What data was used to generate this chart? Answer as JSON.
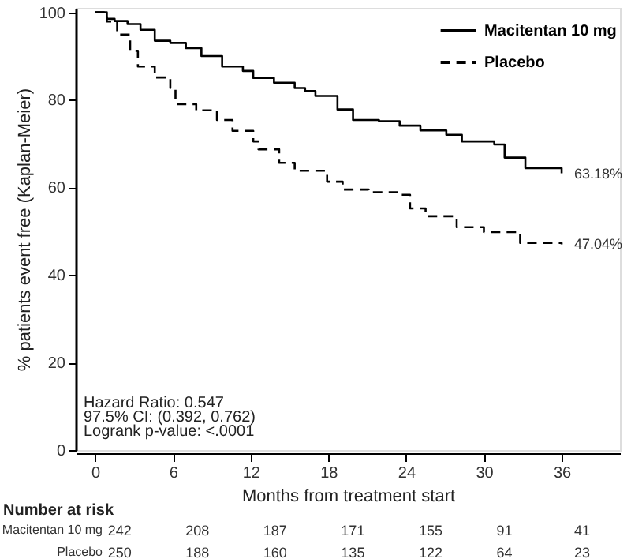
{
  "chart_data": {
    "type": "step",
    "xlabel": "Months from treatment start",
    "ylabel": "% patients event free (Kaplan-Meier)",
    "xlim": [
      -1.5,
      40.5
    ],
    "ylim": [
      0,
      101
    ],
    "xticks": [
      0,
      6,
      12,
      18,
      24,
      30,
      36
    ],
    "yticks": [
      0,
      20,
      40,
      60,
      80,
      100
    ],
    "grid": false,
    "legend": "top right",
    "series": [
      {
        "name": "Macitentan 10 mg",
        "color": "#000000",
        "line_style": "solid",
        "x": [
          0,
          0.9,
          1.5,
          2.5,
          3.5,
          4.6,
          5.8,
          7,
          8.2,
          9.8,
          11.4,
          12.2,
          13.8,
          15.4,
          16.2,
          17,
          18.7,
          19.9,
          21.9,
          23.5,
          25.1,
          27.1,
          28.3,
          30.8,
          31.6,
          33.2,
          36
        ],
        "values": [
          100,
          98.5,
          98,
          97.3,
          96,
          93.5,
          93,
          91.8,
          90,
          87.6,
          86.6,
          85,
          83.9,
          82.7,
          82,
          80.9,
          77.8,
          75.4,
          75.1,
          74.1,
          73,
          72,
          70.5,
          69.8,
          66.8,
          64.4,
          63.2
        ]
      },
      {
        "name": "Placebo",
        "color": "#000000",
        "line_style": "dashed",
        "x": [
          0,
          0.9,
          1.7,
          2.7,
          3.3,
          4.6,
          5.8,
          6.2,
          7.8,
          9.4,
          10.6,
          12.2,
          12.6,
          14.2,
          15.4,
          17.9,
          19.1,
          21.1,
          23.5,
          24.3,
          25.5,
          27.9,
          30,
          32.8,
          36
        ],
        "values": [
          100,
          97.9,
          94.9,
          91.2,
          87.6,
          85.1,
          82.7,
          79,
          77.6,
          75.4,
          72.9,
          70.5,
          68.7,
          65.6,
          63.8,
          61.3,
          59.5,
          58.9,
          58.3,
          55.2,
          53.4,
          50.9,
          49.8,
          47.3,
          47.0
        ]
      }
    ],
    "annotations": [
      {
        "text": "63.18%",
        "x": 36,
        "y": 63.18
      },
      {
        "text": "47.04%",
        "x": 36,
        "y": 47.04
      },
      "Hazard Ratio: 0.547",
      "97.5% CI: (0.392, 0.762)",
      "Logrank p-value: <.0001",
      "Number at risk",
      "Macitentan 10 mg",
      "242",
      "208",
      "187",
      "171",
      "155",
      "91",
      "41",
      "Placebo",
      "250",
      "188",
      "160",
      "135",
      "122",
      "64",
      "23"
    ]
  }
}
